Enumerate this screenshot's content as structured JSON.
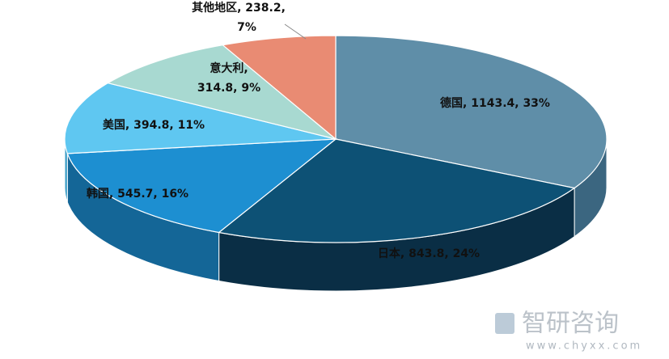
{
  "chart_data": {
    "type": "pie3d",
    "categories": [
      "德国",
      "日本",
      "韩国",
      "美国",
      "意大利",
      "其他地区"
    ],
    "values": [
      1143.4,
      843.8,
      545.7,
      394.8,
      314.8,
      238.2
    ],
    "percents": [
      33,
      24,
      16,
      11,
      9,
      7
    ],
    "data_labels": [
      [
        "德国, 1143.4, 33%"
      ],
      [
        "日本, 843.8, 24%"
      ],
      [
        "韩国, 545.7, 16%"
      ],
      [
        "美国, 394.8, 11%"
      ],
      [
        "意大利,",
        "314.8, 9%"
      ],
      [
        "其他地区, 238.2,",
        "7%"
      ]
    ],
    "colors": [
      "#5f8ea8",
      "#0d5175",
      "#1d8fd1",
      "#5fc7f1",
      "#a8d9d1",
      "#e98b73"
    ],
    "side_colors": [
      "#3b6680",
      "#0a2e45",
      "#146697",
      "#3a9cc6",
      "#7fb5ad",
      "#b86650"
    ]
  },
  "watermark": {
    "brand": "智研咨询",
    "url": "www.chyxx.com"
  }
}
